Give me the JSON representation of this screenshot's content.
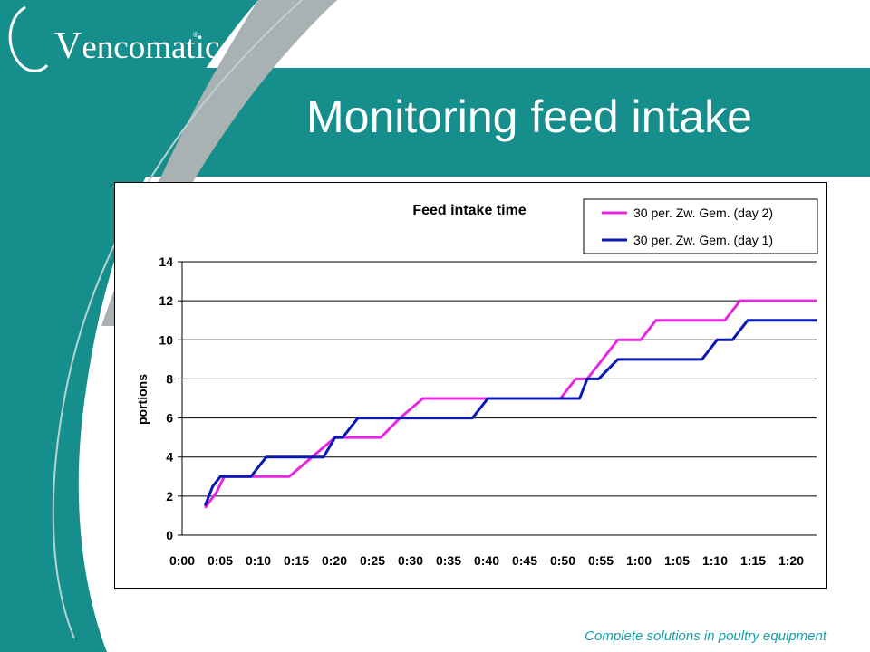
{
  "slide": {
    "brand": "encomatic",
    "brand_initial": "V",
    "brand_mark": "®",
    "title": "Monitoring feed intake",
    "tagline": "Complete solutions in poultry equipment"
  },
  "colors": {
    "teal": "#168e8c",
    "day2": "#e528e0",
    "day1": "#0a18b4"
  },
  "chart_data": {
    "type": "line",
    "title": "Feed intake time",
    "ylabel": "portions",
    "xlabel": "",
    "ylim": [
      0,
      14
    ],
    "yticks": [
      0,
      2,
      4,
      6,
      8,
      10,
      12,
      14
    ],
    "xlim_minutes": [
      0,
      83
    ],
    "xtick_labels": [
      "0:00",
      "0:05",
      "0:10",
      "0:15",
      "0:20",
      "0:25",
      "0:30",
      "0:35",
      "0:40",
      "0:45",
      "0:50",
      "0:55",
      "1:00",
      "1:05",
      "1:10",
      "1:15",
      "1:20"
    ],
    "grid": "horizontal",
    "legend": "top-right",
    "series": [
      {
        "name": "30 per. Zw. Gem. (day 2)",
        "color": "#e528e0",
        "x_minutes": [
          3,
          4.5,
          5,
          5.5,
          9,
          14,
          17,
          20,
          21.5,
          26,
          28.5,
          31.5,
          40,
          49.5,
          51.5,
          53,
          57,
          60,
          62,
          71,
          73,
          83
        ],
        "y": [
          1.4,
          2.2,
          2.6,
          3,
          3,
          3,
          4,
          5,
          5,
          5,
          6,
          7,
          7,
          7,
          8,
          8,
          10,
          10,
          11,
          11,
          12,
          12
        ]
      },
      {
        "name": "30 per. Zw. Gem. (day 1)",
        "color": "#0a18b4",
        "x_minutes": [
          3,
          4,
          5,
          5.5,
          9,
          11,
          18.5,
          20,
          21,
          23,
          24,
          30,
          38,
          40,
          52,
          53,
          54.5,
          57,
          68,
          70,
          72,
          74,
          83
        ],
        "y": [
          1.5,
          2.5,
          3,
          3,
          3,
          4,
          4,
          5,
          5,
          6,
          6,
          6,
          6,
          7,
          7,
          8,
          8,
          9,
          9,
          10,
          10,
          11,
          11
        ]
      }
    ]
  }
}
